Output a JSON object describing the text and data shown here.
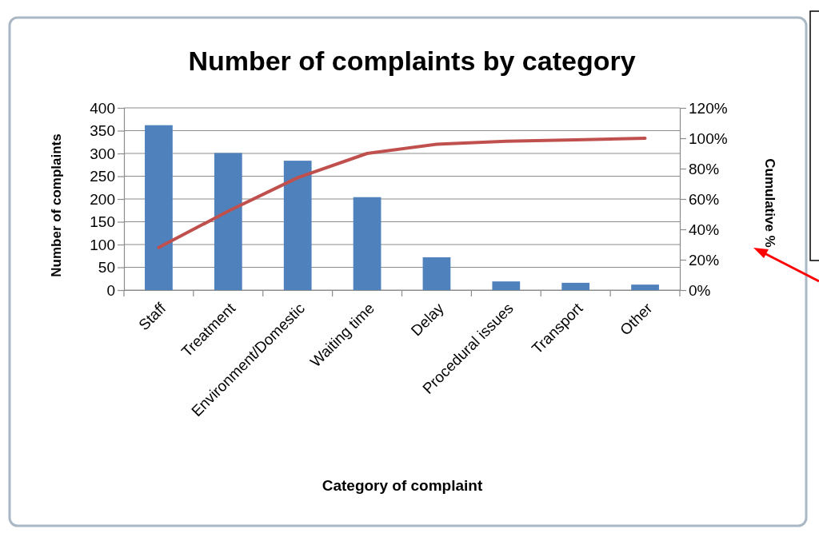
{
  "chart_data": {
    "type": "bar",
    "title": "Number of complaints by category",
    "xlabel": "Category of complaint",
    "ylabel": "Number of complaints",
    "y2label": "Cumulative %",
    "categories": [
      "Staff",
      "Treatment",
      "Environment/Domestic",
      "Waiting time",
      "Delay",
      "Procedural issues",
      "Transport",
      "Other"
    ],
    "series": [
      {
        "color": "#4f81bd",
        "values": [
          362,
          301,
          284,
          204,
          72,
          19,
          16,
          12
        ]
      },
      {
        "type": "line",
        "axis": "y2",
        "color": "#c0504d",
        "values": [
          28,
          52,
          74,
          90,
          96,
          98,
          99,
          100
        ]
      }
    ],
    "ylim": [
      0,
      400
    ],
    "yticks": [
      0,
      50,
      100,
      150,
      200,
      250,
      300,
      350,
      400
    ],
    "y2lim": [
      0,
      120
    ],
    "y2ticks": [
      {
        "value": 0,
        "label": "0%"
      },
      {
        "value": 20,
        "label": "20%"
      },
      {
        "value": 40,
        "label": "40%"
      },
      {
        "value": 60,
        "label": "60%"
      },
      {
        "value": 80,
        "label": "80%"
      },
      {
        "value": 100,
        "label": "100%"
      },
      {
        "value": 120,
        "label": "120%"
      }
    ],
    "grid": "y"
  }
}
